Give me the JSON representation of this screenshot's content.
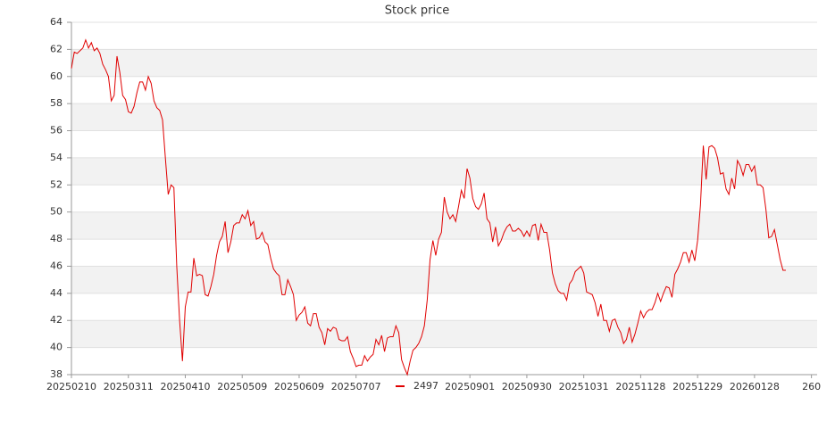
{
  "chart_data": {
    "type": "line",
    "title": "Stock price",
    "series": [
      {
        "name": "2497",
        "color": "#e00000",
        "values": [
          60.6,
          61.8,
          61.7,
          61.9,
          62.1,
          62.7,
          62.1,
          62.5,
          61.9,
          62.1,
          61.7,
          60.9,
          60.5,
          60.0,
          58.2,
          58.6,
          61.5,
          60.3,
          58.6,
          58.3,
          57.4,
          57.3,
          57.8,
          58.8,
          59.6,
          59.6,
          59.0,
          60.0,
          59.5,
          58.2,
          57.7,
          57.5,
          56.8,
          54.0,
          51.3,
          52.0,
          51.8,
          46.0,
          42.0,
          39.0,
          43.0,
          44.1,
          44.1,
          46.6,
          45.3,
          45.4,
          45.3,
          43.9,
          43.8,
          44.5,
          45.4,
          46.8,
          47.8,
          48.2,
          49.3,
          47.0,
          47.8,
          49.0,
          49.2,
          49.2,
          49.8,
          49.5,
          50.1,
          49.0,
          49.3,
          48.0,
          48.1,
          48.5,
          47.8,
          47.6,
          46.6,
          45.8,
          45.5,
          45.3,
          43.9,
          43.9,
          45.0,
          44.5,
          43.9,
          42.0,
          42.4,
          42.6,
          43.0,
          41.8,
          41.6,
          42.5,
          42.5,
          41.5,
          41.1,
          40.2,
          41.4,
          41.2,
          41.5,
          41.4,
          40.6,
          40.5,
          40.5,
          40.8,
          39.7,
          39.2,
          38.6,
          38.7,
          38.7,
          39.4,
          39.0,
          39.3,
          39.5,
          40.6,
          40.2,
          40.9,
          39.7,
          40.7,
          40.8,
          40.8,
          41.6,
          41.1,
          39.1,
          38.5,
          38.0,
          39.0,
          39.8,
          40.0,
          40.3,
          40.8,
          41.6,
          43.5,
          46.5,
          47.9,
          46.8,
          48.0,
          48.5,
          51.1,
          50.0,
          49.5,
          49.8,
          49.3,
          50.4,
          51.6,
          51.0,
          53.2,
          52.5,
          51.0,
          50.4,
          50.2,
          50.6,
          51.4,
          49.5,
          49.2,
          47.8,
          48.9,
          47.5,
          47.9,
          48.5,
          48.9,
          49.1,
          48.6,
          48.6,
          48.8,
          48.6,
          48.2,
          48.6,
          48.2,
          49.0,
          49.1,
          47.9,
          49.1,
          48.5,
          48.5,
          47.2,
          45.5,
          44.7,
          44.2,
          44.0,
          44.0,
          43.5,
          44.7,
          45.0,
          45.6,
          45.8,
          46.0,
          45.5,
          44.1,
          44.0,
          43.9,
          43.3,
          42.3,
          43.2,
          42.0,
          42.0,
          41.2,
          42.0,
          42.1,
          41.5,
          41.1,
          40.3,
          40.6,
          41.5,
          40.4,
          41.0,
          41.8,
          42.7,
          42.2,
          42.6,
          42.8,
          42.8,
          43.3,
          44.0,
          43.4,
          44.0,
          44.5,
          44.4,
          43.7,
          45.4,
          45.8,
          46.3,
          47.0,
          47.0,
          46.3,
          47.2,
          46.4,
          47.9,
          50.5,
          54.9,
          52.4,
          54.8,
          54.9,
          54.7,
          54.0,
          52.8,
          52.9,
          51.7,
          51.3,
          52.5,
          51.7,
          53.8,
          53.4,
          52.7,
          53.5,
          53.5,
          53.0,
          53.4,
          52.0,
          52.0,
          51.8,
          50.2,
          48.1,
          48.2,
          48.7,
          47.6,
          46.5,
          45.7,
          45.7
        ]
      }
    ],
    "xlim": [
      0,
      262
    ],
    "xticks": [
      {
        "value": 0,
        "label": "20250210"
      },
      {
        "value": 20,
        "label": "20250311"
      },
      {
        "value": 40,
        "label": "20250410"
      },
      {
        "value": 60,
        "label": "20250509"
      },
      {
        "value": 80,
        "label": "20250609"
      },
      {
        "value": 100,
        "label": "20250707"
      },
      {
        "value": 140,
        "label": "20250901"
      },
      {
        "value": 160,
        "label": "20250930"
      },
      {
        "value": 180,
        "label": "20251031"
      },
      {
        "value": 200,
        "label": "20251128"
      },
      {
        "value": 220,
        "label": "20251229"
      },
      {
        "value": 240,
        "label": "20260128"
      },
      {
        "value": 260,
        "label": "260"
      }
    ],
    "ylim": [
      38,
      64
    ],
    "yticks": [
      38,
      40,
      42,
      44,
      46,
      48,
      50,
      52,
      54,
      56,
      58,
      60,
      62,
      64
    ],
    "grid": true,
    "legend": "bottom"
  }
}
